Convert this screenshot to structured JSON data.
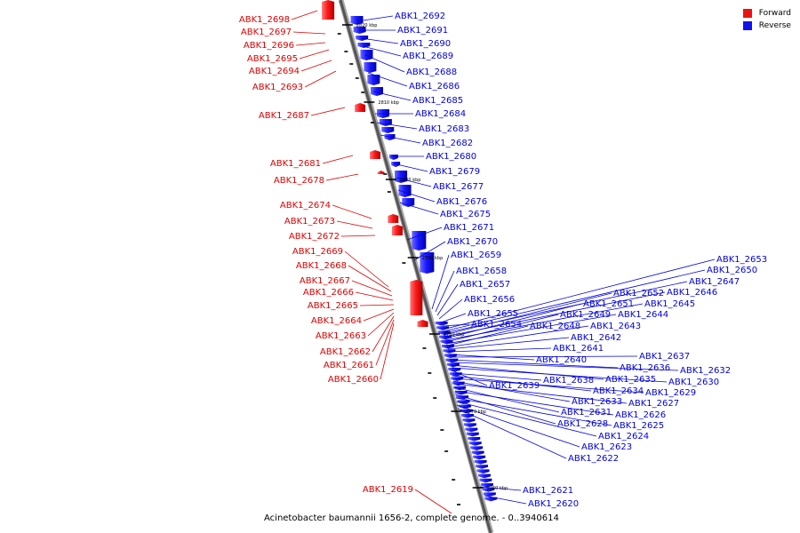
{
  "legend": {
    "items": [
      {
        "label": "Forward",
        "color": "#ee1111"
      },
      {
        "label": "Reverse",
        "color": "#1111ee"
      }
    ]
  },
  "caption": "Acinetobacter baumannii 1656-2, complete genome. - 0..3940614",
  "ticks": [
    "2820 kbp",
    "2810 kbp",
    "2800 kbp",
    "2790 kbp",
    "2780 kbp",
    "2770 kbp",
    "2760 kbp"
  ],
  "forward_genes": [
    "ABK1_2698",
    "ABK1_2697",
    "ABK1_2696",
    "ABK1_2695",
    "ABK1_2694",
    "ABK1_2693",
    "ABK1_2687",
    "ABK1_2681",
    "ABK1_2678",
    "ABK1_2674",
    "ABK1_2673",
    "ABK1_2672",
    "ABK1_2669",
    "ABK1_2668",
    "ABK1_2667",
    "ABK1_2666",
    "ABK1_2665",
    "ABK1_2664",
    "ABK1_2663",
    "ABK1_2662",
    "ABK1_2661",
    "ABK1_2660",
    "ABK1_2619"
  ],
  "reverse_genes": [
    "ABK1_2692",
    "ABK1_2691",
    "ABK1_2690",
    "ABK1_2689",
    "ABK1_2688",
    "ABK1_2686",
    "ABK1_2685",
    "ABK1_2684",
    "ABK1_2683",
    "ABK1_2682",
    "ABK1_2680",
    "ABK1_2679",
    "ABK1_2677",
    "ABK1_2676",
    "ABK1_2675",
    "ABK1_2671",
    "ABK1_2670",
    "ABK1_2659",
    "ABK1_2658",
    "ABK1_2657",
    "ABK1_2656",
    "ABK1_2655",
    "ABK1_2654",
    "ABK1_2653",
    "ABK1_2650",
    "ABK1_2647",
    "ABK1_2652",
    "ABK1_2646",
    "ABK1_2651",
    "ABK1_2645",
    "ABK1_2649",
    "ABK1_2644",
    "ABK1_2648",
    "ABK1_2643",
    "ABK1_2642",
    "ABK1_2641",
    "ABK1_2640",
    "ABK1_2637",
    "ABK1_2636",
    "ABK1_2632",
    "ABK1_2635",
    "ABK1_2630",
    "ABK1_2639",
    "ABK1_2638",
    "ABK1_2634",
    "ABK1_2629",
    "ABK1_2633",
    "ABK1_2627",
    "ABK1_2631",
    "ABK1_2626",
    "ABK1_2628",
    "ABK1_2625",
    "ABK1_2624",
    "ABK1_2623",
    "ABK1_2622",
    "ABK1_2621",
    "ABK1_2620"
  ]
}
